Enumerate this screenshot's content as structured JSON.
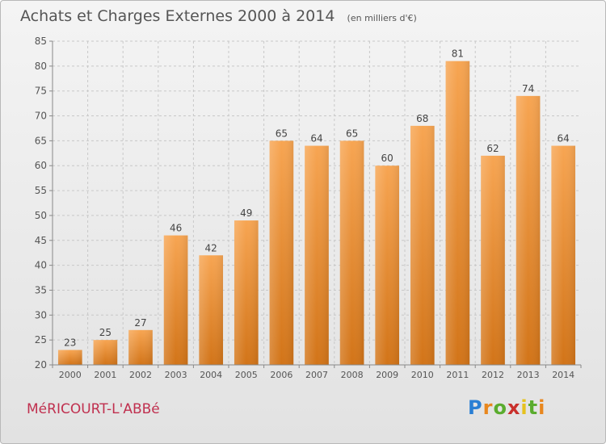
{
  "chart_data": {
    "type": "bar",
    "title": "Achats et Charges Externes 2000 à 2014",
    "subtitle": "(en milliers d'€)",
    "categories": [
      "2000",
      "2001",
      "2002",
      "2003",
      "2004",
      "2005",
      "2006",
      "2007",
      "2008",
      "2009",
      "2010",
      "2011",
      "2012",
      "2013",
      "2014"
    ],
    "values": [
      23,
      25,
      27,
      46,
      42,
      49,
      65,
      64,
      65,
      60,
      68,
      81,
      62,
      74,
      64
    ],
    "ylim": [
      20,
      85
    ],
    "yticks": [
      20,
      25,
      30,
      35,
      40,
      45,
      50,
      55,
      60,
      65,
      70,
      75,
      80,
      85
    ],
    "grid": true,
    "bar_color_top": "#f7a552",
    "bar_color_bottom": "#d27418"
  },
  "footer": {
    "commune": "MéRICOURT-L'ABBé",
    "logo": "Proxiti"
  }
}
